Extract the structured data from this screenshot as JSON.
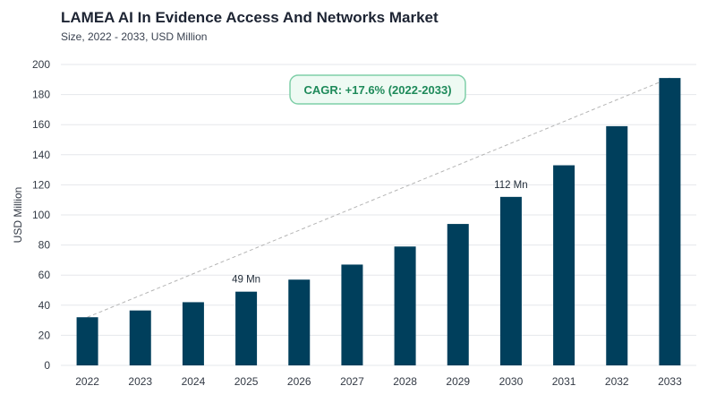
{
  "header": {
    "title": "LAMEA AI In Evidence Access And Networks Market",
    "subtitle": "Size, 2022 - 2033, USD Million"
  },
  "chart_data": {
    "type": "bar",
    "title": "LAMEA AI In Evidence Access And Networks Market",
    "subtitle": "Size, 2022 - 2033, USD Million",
    "xlabel": "",
    "ylabel": "USD Million",
    "categories": [
      "2022",
      "2023",
      "2024",
      "2025",
      "2026",
      "2027",
      "2028",
      "2029",
      "2030",
      "2031",
      "2032",
      "2033"
    ],
    "values": [
      32,
      36.5,
      42,
      49,
      57,
      67,
      79,
      94,
      112,
      133,
      159,
      191
    ],
    "ylim": [
      0,
      200
    ],
    "yticks": [
      0,
      20,
      40,
      60,
      80,
      100,
      120,
      140,
      160,
      180,
      200
    ],
    "data_labels": [
      {
        "index": 3,
        "text": "49 Mn"
      },
      {
        "index": 8,
        "text": "112 Mn"
      }
    ],
    "annotation": "CAGR: +17.6% (2022-2033)",
    "trend_line": {
      "from_index": 0,
      "to_index": 11,
      "style": "dashed"
    },
    "grid": true,
    "legend": "none",
    "colors": {
      "bar": "#003f5c",
      "grid": "#e5e7eb",
      "trend": "#b5b5b5",
      "annotation_border": "#7fcfa8",
      "annotation_fill": "#eefaf3",
      "annotation_text": "#1e8a5a"
    }
  }
}
